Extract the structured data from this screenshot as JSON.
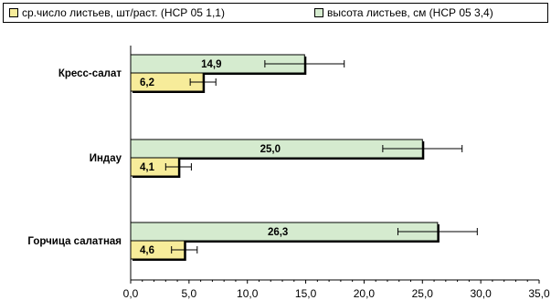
{
  "colors": {
    "leaves_count": "#f7ec9a",
    "leaf_height": "#d5ebcf",
    "outline": "#000000"
  },
  "chart_data": {
    "type": "bar",
    "orientation": "horizontal",
    "title": "",
    "xlabel": "",
    "ylabel": "",
    "xlim": [
      0,
      35
    ],
    "x_ticks": [
      "0,0",
      "5,0",
      "10,0",
      "15,0",
      "20,0",
      "25,0",
      "30,0",
      "35,0"
    ],
    "grid": false,
    "legend_position": "top",
    "categories": [
      "Кресс-салат",
      "Индау",
      "Горчица салатная"
    ],
    "series": [
      {
        "name": "ср.число листьев, шт/раст. (НСР 05 1,1)",
        "values": [
          6.2,
          4.1,
          4.6
        ],
        "labels": [
          "6,2",
          "4,1",
          "4,6"
        ],
        "error": 1.1
      },
      {
        "name": "высота листьев, см (НСР 05 3,4)",
        "values": [
          14.9,
          25.0,
          26.3
        ],
        "labels": [
          "14,9",
          "25,0",
          "26,3"
        ],
        "error": 3.4
      }
    ]
  }
}
